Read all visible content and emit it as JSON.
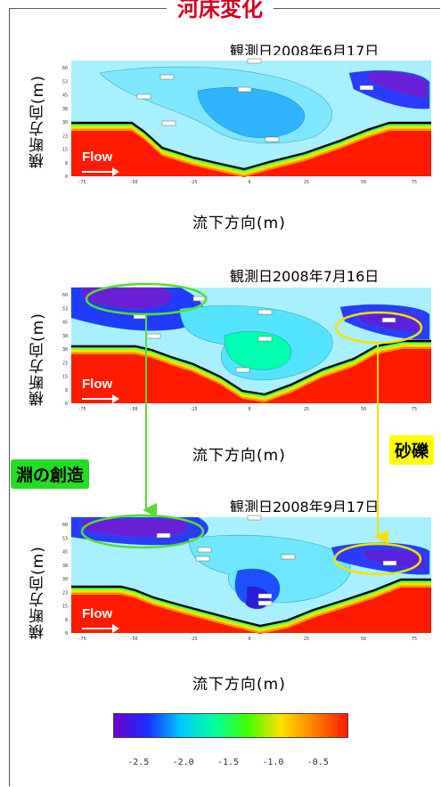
{
  "title": "河床変化",
  "panels": [
    {
      "date": "観測日2008年6月17日",
      "ylabel": "横断方向(m)",
      "xlabel": "流下方向(m)",
      "flow": "Flow"
    },
    {
      "date": "観測日2008年7月16日",
      "ylabel": "横断方向(m)",
      "xlabel": "流下方向(m)",
      "flow": "Flow"
    },
    {
      "date": "観測日2008年9月17日",
      "ylabel": "横断方向(m)",
      "xlabel": "流下方向(m)",
      "flow": "Flow"
    }
  ],
  "annotations": {
    "pool": "淵の創造",
    "gravel": "砂礫"
  },
  "colors": {
    "title": "#d4001c",
    "pool_callout_bg": "#22dd22",
    "gravel_callout_bg": "#ffff00",
    "pool_arrow": "#55dd33",
    "gravel_arrow": "#f2e200",
    "bed_red": "#ff1a00"
  },
  "chart_data": {
    "type": "heatmap",
    "x_ticks": [
      "-75",
      "-50",
      "-25",
      "0",
      "25",
      "50",
      "75"
    ],
    "y_ticks": [
      "60",
      "53",
      "45",
      "38",
      "30",
      "23",
      "15",
      "8",
      "0"
    ],
    "xlim": [
      -85,
      85
    ],
    "ylim": [
      0,
      65
    ],
    "colorbar": {
      "ticks": [
        "-2.5",
        "-2.0",
        "-1.5",
        "-1.0",
        "-0.5"
      ],
      "range": [
        -2.8,
        -0.2
      ],
      "colormap": [
        "#7000d0",
        "#1a2cff",
        "#00c8ff",
        "#00ffa0",
        "#40ff00",
        "#ffe000",
        "#ff8000",
        "#ff1a00"
      ]
    }
  }
}
